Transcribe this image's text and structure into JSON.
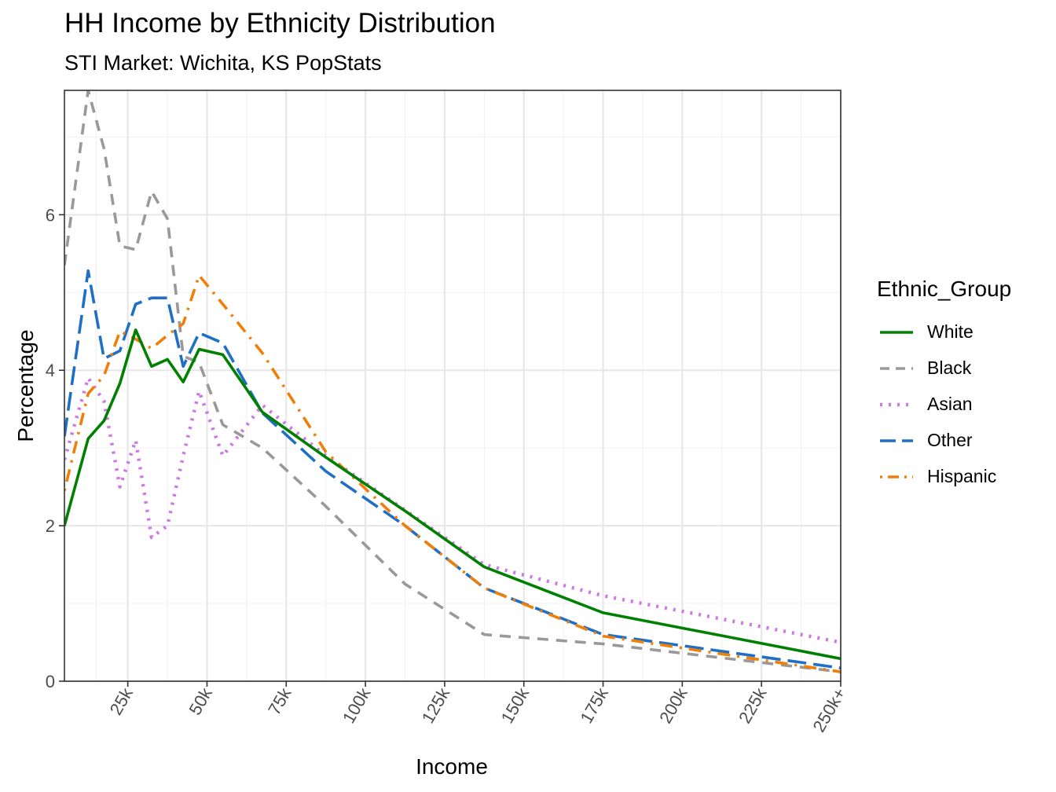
{
  "chart_data": {
    "type": "line",
    "title": "HH Income by Ethnicity Distribution",
    "subtitle": "STI Market: Wichita, KS PopStats",
    "xlabel": "Income",
    "ylabel": "Percentage",
    "xlim": [
      5,
      250
    ],
    "ylim": [
      0,
      7.6
    ],
    "x_ticks": [
      {
        "value": 25,
        "label": "25k"
      },
      {
        "value": 50,
        "label": "50k"
      },
      {
        "value": 75,
        "label": "75k"
      },
      {
        "value": 100,
        "label": "100k"
      },
      {
        "value": 125,
        "label": "125k"
      },
      {
        "value": 150,
        "label": "150k"
      },
      {
        "value": 175,
        "label": "175k"
      },
      {
        "value": 200,
        "label": "200k"
      },
      {
        "value": 225,
        "label": "225k"
      },
      {
        "value": 250,
        "label": "250k+"
      }
    ],
    "y_ticks": [
      {
        "value": 0,
        "label": "0"
      },
      {
        "value": 2,
        "label": "2"
      },
      {
        "value": 4,
        "label": "4"
      },
      {
        "value": 6,
        "label": "6"
      }
    ],
    "legend_title": "Ethnic_Group",
    "legend_position": "right",
    "x": [
      5,
      12.5,
      17.5,
      22.5,
      27.5,
      32.5,
      37.5,
      42.5,
      47.5,
      55,
      67.5,
      87.5,
      112.5,
      137.5,
      175,
      250
    ],
    "series": [
      {
        "name": "White",
        "color": "#008000",
        "dash": "solid",
        "values": [
          2.0,
          3.12,
          3.35,
          3.83,
          4.52,
          4.05,
          4.14,
          3.85,
          4.27,
          4.2,
          3.46,
          2.88,
          2.19,
          1.47,
          0.88,
          0.29
        ]
      },
      {
        "name": "Black",
        "color": "#999999",
        "dash": "dashed",
        "values": [
          5.35,
          7.6,
          6.85,
          5.6,
          5.55,
          6.3,
          5.95,
          4.18,
          4.1,
          3.3,
          3.0,
          2.25,
          1.25,
          0.6,
          0.48,
          0.12
        ]
      },
      {
        "name": "Asian",
        "color": "#cc79e6",
        "dash": "dotted",
        "values": [
          2.85,
          3.9,
          3.6,
          2.5,
          3.1,
          1.85,
          2.0,
          2.9,
          3.73,
          2.9,
          3.55,
          2.9,
          2.2,
          1.5,
          1.1,
          0.5
        ]
      },
      {
        "name": "Other",
        "color": "#1f6fc6",
        "dash": "longdash",
        "values": [
          3.15,
          5.28,
          4.15,
          4.25,
          4.85,
          4.93,
          4.93,
          4.05,
          4.48,
          4.35,
          3.45,
          2.7,
          2.0,
          1.2,
          0.6,
          0.17
        ]
      },
      {
        "name": "Hispanic",
        "color": "#f07f09",
        "dash": "dotdash",
        "values": [
          2.45,
          3.7,
          3.93,
          4.5,
          4.4,
          4.28,
          4.45,
          4.6,
          5.22,
          4.85,
          4.22,
          2.95,
          2.0,
          1.2,
          0.58,
          0.12
        ]
      }
    ]
  }
}
